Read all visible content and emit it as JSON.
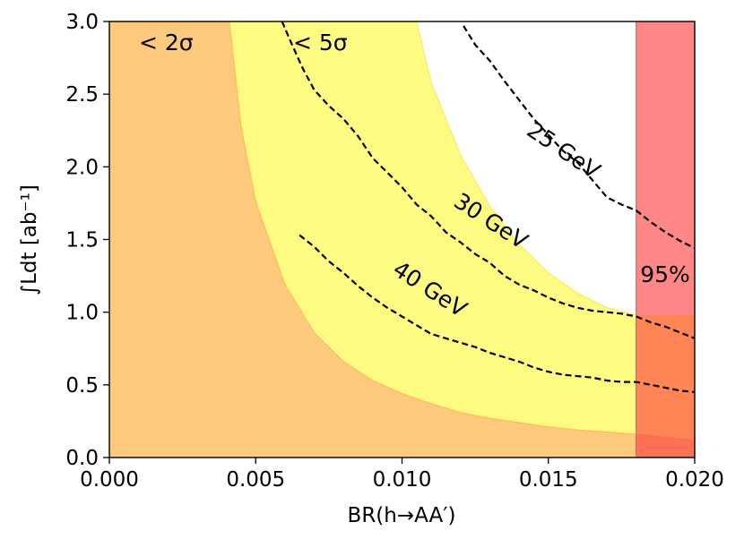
{
  "chart_data": {
    "type": "area",
    "xlabel": "BR(h→AA′)",
    "ylabel": "∫Ldt [ab⁻¹]",
    "xlim": [
      0.0,
      0.02
    ],
    "ylim": [
      0.0,
      3.0
    ],
    "x_ticks": [
      "0.000",
      "0.005",
      "0.010",
      "0.015",
      "0.020"
    ],
    "y_ticks": [
      "0.0",
      "0.5",
      "1.0",
      "1.5",
      "2.0",
      "2.5",
      "3.0"
    ],
    "x_tick_values": [
      0.0,
      0.005,
      0.01,
      0.015,
      0.02
    ],
    "y_tick_values": [
      0.0,
      0.5,
      1.0,
      1.5,
      2.0,
      2.5,
      3.0
    ],
    "grid": false,
    "regions": [
      {
        "name": "< 2σ",
        "color": "#fdc97d",
        "boundary_x": [
          0.0041,
          0.0045,
          0.005,
          0.006,
          0.007,
          0.008,
          0.009,
          0.01,
          0.011,
          0.012,
          0.013,
          0.014,
          0.015,
          0.016,
          0.017,
          0.018,
          0.019,
          0.02
        ],
        "boundary_y": [
          3.0,
          2.28,
          1.76,
          1.19,
          0.86,
          0.66,
          0.53,
          0.44,
          0.37,
          0.31,
          0.27,
          0.24,
          0.21,
          0.19,
          0.175,
          0.16,
          0.14,
          0.12
        ]
      },
      {
        "name": "< 5σ",
        "color": "#fefb82",
        "boundary_x": [
          0.0105,
          0.011,
          0.012,
          0.013,
          0.014,
          0.015,
          0.016,
          0.017,
          0.018
        ],
        "boundary_y": [
          3.0,
          2.58,
          2.08,
          1.73,
          1.47,
          1.27,
          1.13,
          1.03,
          0.98
        ]
      },
      {
        "name": "95%",
        "color": "#ff8080",
        "x_range": [
          0.018,
          0.02
        ]
      }
    ],
    "contours": [
      {
        "name": "25 GeV",
        "x": [
          0.0121,
          0.0125,
          0.013,
          0.0135,
          0.014,
          0.0145,
          0.015,
          0.0155,
          0.016,
          0.0165,
          0.017,
          0.0175,
          0.018,
          0.0185,
          0.019,
          0.0195,
          0.02
        ],
        "y": [
          2.97,
          2.84,
          2.73,
          2.59,
          2.46,
          2.33,
          2.22,
          2.11,
          2.03,
          1.91,
          1.79,
          1.74,
          1.7,
          1.62,
          1.55,
          1.49,
          1.44
        ]
      },
      {
        "name": "30 GeV",
        "x": [
          0.0059,
          0.0062,
          0.0066,
          0.007,
          0.0075,
          0.008,
          0.0085,
          0.009,
          0.0095,
          0.01,
          0.0105,
          0.011,
          0.0115,
          0.012,
          0.0125,
          0.013,
          0.0135,
          0.014,
          0.0145,
          0.015,
          0.0155,
          0.016,
          0.0165,
          0.017,
          0.0175,
          0.018,
          0.0185,
          0.019,
          0.0195,
          0.02
        ],
        "y": [
          3.0,
          2.86,
          2.68,
          2.53,
          2.42,
          2.33,
          2.21,
          2.06,
          1.96,
          1.86,
          1.74,
          1.66,
          1.55,
          1.48,
          1.4,
          1.34,
          1.25,
          1.19,
          1.15,
          1.1,
          1.06,
          1.03,
          1.01,
          1.0,
          0.99,
          0.97,
          0.93,
          0.9,
          0.86,
          0.82
        ]
      },
      {
        "name": "40 GeV",
        "x": [
          0.0065,
          0.007,
          0.0075,
          0.008,
          0.0085,
          0.009,
          0.0095,
          0.01,
          0.0105,
          0.011,
          0.0115,
          0.012,
          0.0125,
          0.013,
          0.0135,
          0.014,
          0.0145,
          0.015,
          0.0155,
          0.016,
          0.0165,
          0.017,
          0.0175,
          0.018,
          0.0185,
          0.019,
          0.0195,
          0.02
        ],
        "y": [
          1.53,
          1.45,
          1.35,
          1.27,
          1.18,
          1.1,
          1.03,
          0.97,
          0.91,
          0.85,
          0.82,
          0.79,
          0.76,
          0.72,
          0.69,
          0.66,
          0.62,
          0.59,
          0.57,
          0.56,
          0.55,
          0.53,
          0.52,
          0.52,
          0.5,
          0.48,
          0.46,
          0.45
        ]
      }
    ],
    "annotations": {
      "two_sigma": "< 2σ",
      "five_sigma": "< 5σ",
      "ninety_five": "95%",
      "label_25": "25 GeV",
      "label_30": "30 GeV",
      "label_40": "40 GeV"
    }
  }
}
